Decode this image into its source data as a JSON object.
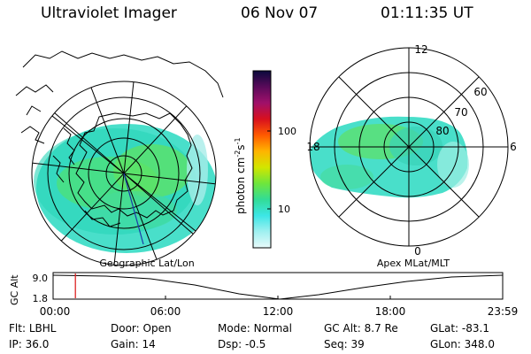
{
  "header": {
    "instrument": "Ultraviolet Imager",
    "date": "06 Nov 07",
    "time": "01:11:35 UT"
  },
  "left_panel": {
    "caption": "Geographic Lat/Lon"
  },
  "right_panel": {
    "caption": "Apex MLat/MLT",
    "mlt_labels": [
      "12",
      "18",
      "6",
      "0"
    ],
    "mlat_labels": [
      "80",
      "70",
      "60"
    ]
  },
  "colorbar": {
    "unit_label": "photon cm",
    "unit_exp1": "-2",
    "unit_s": "s",
    "unit_exp2": "-1",
    "ticks": [
      "100",
      "10"
    ],
    "scale": "log",
    "colors": [
      "#0a0a3c",
      "#5a0a5a",
      "#a0106a",
      "#d8101e",
      "#ff5a00",
      "#ffb400",
      "#d2e600",
      "#6ee63c",
      "#32dc96",
      "#3ce6e6",
      "#a0f0f0",
      "#e8fafa"
    ]
  },
  "altitude_plot": {
    "ylabel": "GC Alt",
    "yticks": [
      "9.0",
      "1.8"
    ],
    "xticks": [
      "00:00",
      "06:00",
      "12:00",
      "18:00",
      "23:59"
    ],
    "current_time_hours": 1.19,
    "marker_color": "#dd2222"
  },
  "status": {
    "rows": [
      [
        {
          "label": "Flt:",
          "value": "LBHL"
        },
        {
          "label": "Door:",
          "value": "Open"
        },
        {
          "label": "Mode:",
          "value": "Normal"
        },
        {
          "label": "GC Alt:",
          "value": "8.7 Re"
        },
        {
          "label": "GLat:",
          "value": "-83.1"
        }
      ],
      [
        {
          "label": "IP:",
          "value": "36.0"
        },
        {
          "label": "Gain:",
          "value": "14"
        },
        {
          "label": "Dsp:",
          "value": "-0.5"
        },
        {
          "label": "Seq:",
          "value": "39"
        },
        {
          "label": "GLon:",
          "value": "348.0"
        }
      ]
    ]
  }
}
